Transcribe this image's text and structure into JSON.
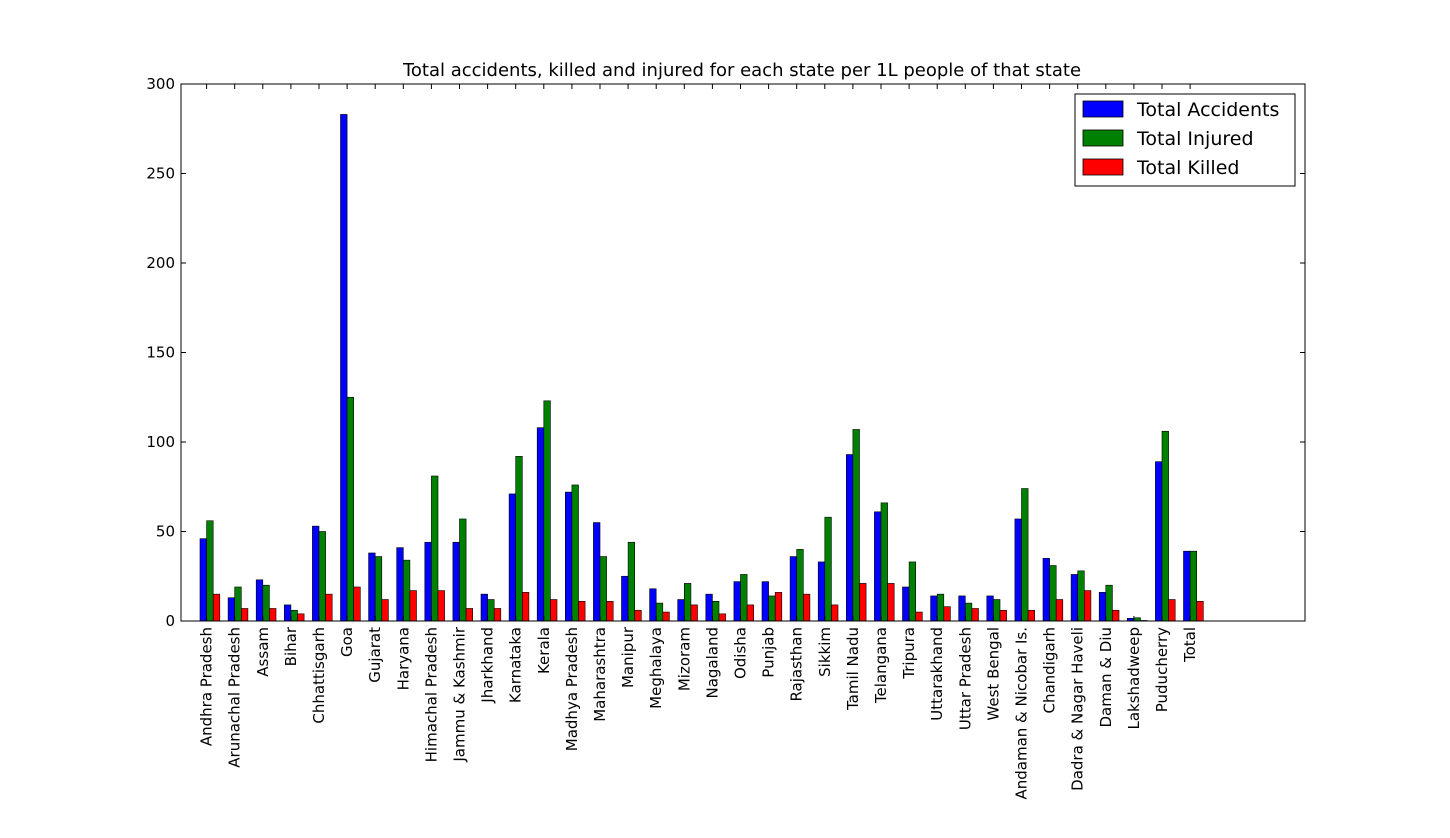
{
  "chart_data": {
    "type": "bar",
    "title": "Total accidents, killed and injured for each state per 1L people of that state",
    "xlabel": "",
    "ylabel": "",
    "ylim": [
      0,
      300
    ],
    "yticks": [
      "0",
      "50",
      "100",
      "150",
      "200",
      "250",
      "300"
    ],
    "grid": false,
    "legend_position": "top-right",
    "categories": [
      "Andhra Pradesh",
      "Arunachal Pradesh",
      "Assam",
      "Bihar",
      "Chhattisgarh",
      "Goa",
      "Gujarat",
      "Haryana",
      "Himachal Pradesh",
      "Jammu & Kashmir",
      "Jharkhand",
      "Karnataka",
      "Kerala",
      "Madhya Pradesh",
      "Maharashtra",
      "Manipur",
      "Meghalaya",
      "Mizoram",
      "Nagaland",
      "Odisha",
      "Punjab",
      "Rajasthan",
      "Sikkim",
      "Tamil Nadu",
      "Telangana",
      "Tripura",
      "Uttarakhand",
      "Uttar Pradesh",
      "West Bengal",
      "Andaman & Nicobar Is.",
      "Chandigarh",
      "Dadra & Nagar Haveli",
      "Daman & Diu",
      "Lakshadweep",
      "Puducherry",
      "Total"
    ],
    "series": [
      {
        "name": "Total Accidents",
        "color": "#0000ff",
        "values": [
          46,
          13,
          23,
          9,
          53,
          283,
          38,
          41,
          44,
          44,
          15,
          71,
          108,
          72,
          55,
          25,
          18,
          12,
          15,
          22,
          22,
          36,
          33,
          93,
          61,
          19,
          14,
          14,
          14,
          57,
          35,
          26,
          16,
          1.5,
          89,
          39
        ]
      },
      {
        "name": "Total Injured",
        "color": "#008000",
        "values": [
          56,
          19,
          20,
          6,
          50,
          125,
          36,
          34,
          81,
          57,
          12,
          92,
          123,
          76,
          36,
          44,
          10,
          21,
          11,
          26,
          14,
          40,
          58,
          107,
          66,
          33,
          15,
          10,
          12,
          74,
          31,
          28,
          20,
          1.8,
          106,
          39
        ]
      },
      {
        "name": "Total Killed",
        "color": "#ff0000",
        "values": [
          15,
          7,
          7,
          4,
          15,
          19,
          12,
          17,
          17,
          7,
          7,
          16,
          12,
          11,
          11,
          6,
          5,
          9,
          4,
          9,
          16,
          15,
          9,
          21,
          21,
          5,
          8,
          7,
          6,
          6,
          12,
          17,
          6,
          0.3,
          12,
          11
        ]
      }
    ]
  }
}
